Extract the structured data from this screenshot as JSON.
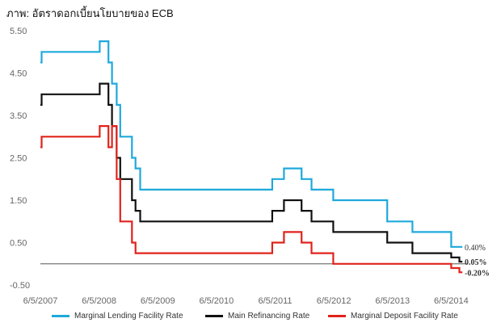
{
  "caption": "ภาพ: อัตราดอกเบี้ยนโยบายของ ECB",
  "chart_data": {
    "type": "line",
    "step": true,
    "title": "",
    "xlabel": "",
    "ylabel": "",
    "ylim": [
      -0.5,
      5.5
    ],
    "yticks": [
      "5.50",
      "4.50",
      "3.50",
      "2.50",
      "1.50",
      "0.50",
      "-0.50"
    ],
    "xticks": [
      "6/5/2007",
      "6/5/2008",
      "6/5/2009",
      "6/5/2010",
      "6/5/2011",
      "6/5/2012",
      "6/5/2013",
      "6/5/2014"
    ],
    "zero_line": true,
    "grid": false,
    "legend_position": "bottom",
    "series": [
      {
        "name": "Marginal Lending Facility Rate",
        "color": "#1fa9dc",
        "end_label": "0.40%",
        "points": [
          [
            2007.0,
            4.75
          ],
          [
            2007.02,
            5.0
          ],
          [
            2008.0,
            5.0
          ],
          [
            2008.01,
            5.25
          ],
          [
            2008.15,
            5.25
          ],
          [
            2008.16,
            4.75
          ],
          [
            2008.22,
            4.25
          ],
          [
            2008.3,
            3.75
          ],
          [
            2008.36,
            3.0
          ],
          [
            2008.56,
            2.5
          ],
          [
            2008.62,
            2.25
          ],
          [
            2008.7,
            1.75
          ],
          [
            2010.93,
            1.75
          ],
          [
            2010.95,
            2.0
          ],
          [
            2011.13,
            2.0
          ],
          [
            2011.15,
            2.25
          ],
          [
            2011.43,
            2.25
          ],
          [
            2011.45,
            2.0
          ],
          [
            2011.6,
            2.0
          ],
          [
            2011.62,
            1.75
          ],
          [
            2011.97,
            1.75
          ],
          [
            2011.99,
            1.5
          ],
          [
            2012.89,
            1.5
          ],
          [
            2012.91,
            1.0
          ],
          [
            2013.32,
            1.0
          ],
          [
            2013.34,
            0.75
          ],
          [
            2013.98,
            0.75
          ],
          [
            2014.0,
            0.4
          ],
          [
            2014.19,
            0.4
          ]
        ]
      },
      {
        "name": "Main Refinancing Rate",
        "color": "#111111",
        "end_label": "0.05%",
        "points": [
          [
            2007.0,
            3.75
          ],
          [
            2007.02,
            4.0
          ],
          [
            2008.0,
            4.0
          ],
          [
            2008.01,
            4.25
          ],
          [
            2008.15,
            4.25
          ],
          [
            2008.16,
            3.75
          ],
          [
            2008.22,
            3.25
          ],
          [
            2008.3,
            2.5
          ],
          [
            2008.36,
            2.0
          ],
          [
            2008.56,
            1.5
          ],
          [
            2008.62,
            1.25
          ],
          [
            2008.7,
            1.0
          ],
          [
            2010.93,
            1.0
          ],
          [
            2010.95,
            1.25
          ],
          [
            2011.13,
            1.25
          ],
          [
            2011.15,
            1.5
          ],
          [
            2011.43,
            1.5
          ],
          [
            2011.45,
            1.25
          ],
          [
            2011.6,
            1.25
          ],
          [
            2011.62,
            1.0
          ],
          [
            2011.97,
            1.0
          ],
          [
            2011.99,
            0.75
          ],
          [
            2012.89,
            0.75
          ],
          [
            2012.91,
            0.5
          ],
          [
            2013.32,
            0.5
          ],
          [
            2013.34,
            0.25
          ],
          [
            2013.98,
            0.25
          ],
          [
            2014.0,
            0.15
          ],
          [
            2014.12,
            0.15
          ],
          [
            2014.14,
            0.05
          ],
          [
            2014.19,
            0.05
          ]
        ]
      },
      {
        "name": "Marginal Deposit Facility Rate",
        "color": "#e0231b",
        "end_label": "-0.20%",
        "points": [
          [
            2007.0,
            2.75
          ],
          [
            2007.02,
            3.0
          ],
          [
            2008.0,
            3.0
          ],
          [
            2008.01,
            3.25
          ],
          [
            2008.15,
            3.25
          ],
          [
            2008.16,
            2.75
          ],
          [
            2008.22,
            3.25
          ],
          [
            2008.3,
            2.0
          ],
          [
            2008.36,
            1.0
          ],
          [
            2008.56,
            0.5
          ],
          [
            2008.62,
            0.25
          ],
          [
            2010.93,
            0.25
          ],
          [
            2010.95,
            0.5
          ],
          [
            2011.13,
            0.5
          ],
          [
            2011.15,
            0.75
          ],
          [
            2011.43,
            0.75
          ],
          [
            2011.45,
            0.5
          ],
          [
            2011.6,
            0.5
          ],
          [
            2011.62,
            0.25
          ],
          [
            2011.97,
            0.25
          ],
          [
            2011.99,
            0.0
          ],
          [
            2013.98,
            0.0
          ],
          [
            2014.0,
            -0.1
          ],
          [
            2014.12,
            -0.1
          ],
          [
            2014.14,
            -0.2
          ],
          [
            2014.19,
            -0.2
          ]
        ]
      }
    ]
  }
}
